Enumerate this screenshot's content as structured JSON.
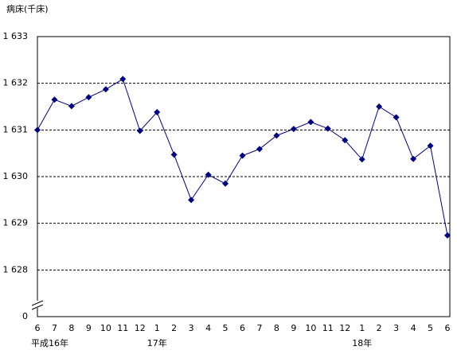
{
  "chart_data": {
    "type": "line",
    "title": "病床(千床)",
    "groups": [
      {
        "name": "平成16年",
        "categories": [
          "6",
          "7",
          "8",
          "9",
          "10",
          "11",
          "12"
        ]
      },
      {
        "name": "17年",
        "categories": [
          "1",
          "2",
          "3",
          "4",
          "5",
          "6",
          "7",
          "8",
          "9",
          "10",
          "11",
          "12"
        ]
      },
      {
        "name": "18年",
        "categories": [
          "1",
          "2",
          "3",
          "4",
          "5",
          "6"
        ]
      }
    ],
    "series": [
      {
        "color": "#000080",
        "values": [
          1631.0,
          1631.65,
          1631.51,
          1631.7,
          1631.87,
          1632.09,
          1630.98,
          1631.38,
          1630.47,
          1629.5,
          1630.04,
          1629.85,
          1630.45,
          1630.59,
          1630.88,
          1631.02,
          1631.17,
          1631.03,
          1630.78,
          1630.37,
          1631.5,
          1631.27,
          1630.38,
          1630.66,
          1628.74
        ]
      }
    ],
    "ylim": [
      0,
      1633
    ],
    "y_break": [
      0,
      1627
    ],
    "yticks": [
      0,
      {
        "value": 1628,
        "label": "1 628"
      },
      {
        "value": 1629,
        "label": "1 629"
      },
      {
        "value": 1630,
        "label": "1 630"
      },
      {
        "value": 1631,
        "label": "1 631"
      },
      {
        "value": 1632,
        "label": "1 632"
      },
      {
        "value": 1633,
        "label": "1 633"
      }
    ],
    "grid": true
  }
}
